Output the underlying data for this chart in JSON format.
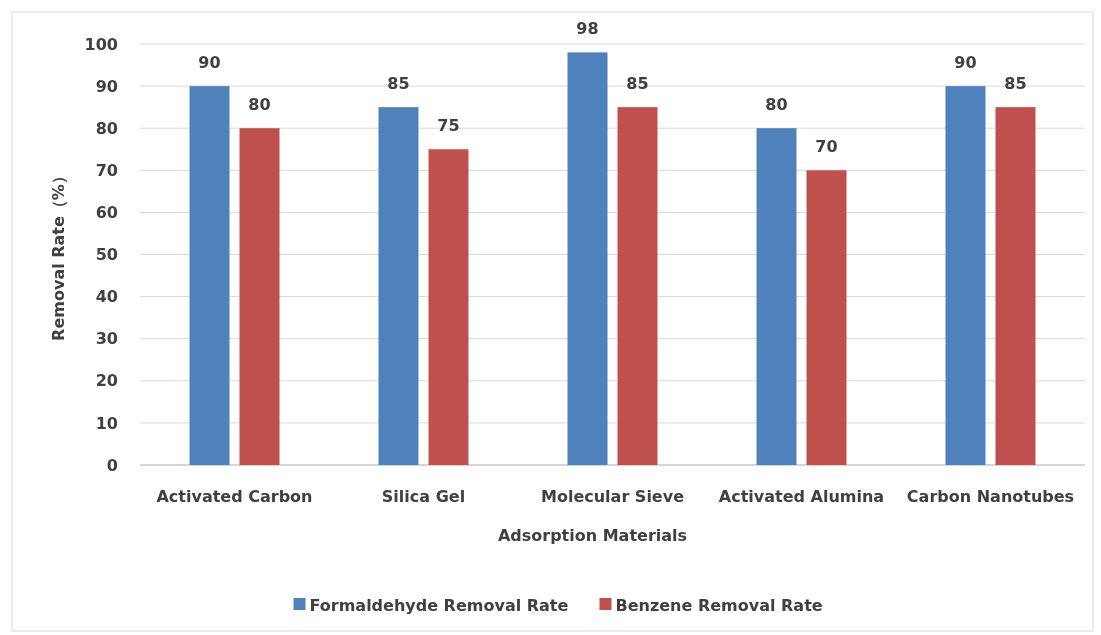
{
  "chart_data": {
    "type": "bar",
    "xlabel": "Adsorption Materials",
    "ylabel": "Removal Rate（%）",
    "categories": [
      "Activated Carbon",
      "Silica Gel",
      "Molecular Sieve",
      "Activated Alumina",
      "Carbon Nanotubes"
    ],
    "series": [
      {
        "name": "Formaldehyde Removal Rate",
        "color": "#4f81bd",
        "values": [
          90,
          85,
          98,
          80,
          90
        ]
      },
      {
        "name": "Benzene Removal Rate",
        "color": "#c0504d",
        "values": [
          80,
          75,
          85,
          70,
          85
        ]
      }
    ],
    "ylim": [
      0,
      100
    ],
    "yticks": [
      0,
      10,
      20,
      30,
      40,
      50,
      60,
      70,
      80,
      90,
      100
    ],
    "grid": "y",
    "legend": "bottom",
    "data_labels": true
  }
}
